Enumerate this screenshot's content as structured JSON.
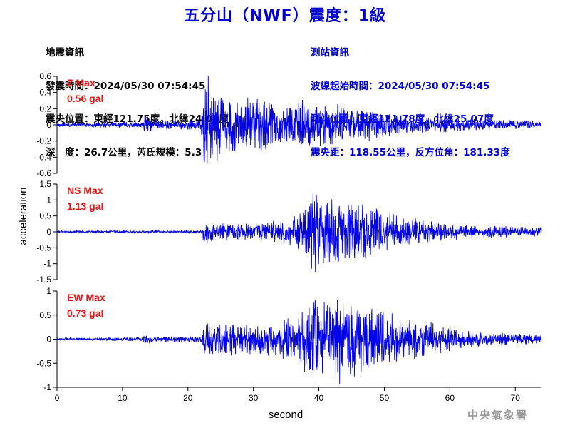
{
  "title": "五分山（NWF）震度：1級",
  "quake_info": {
    "header": "地震資訊",
    "time_label": "發震時間：",
    "time": "2024/05/30 07:54:45",
    "location_label": "震央位置：",
    "location": "東經121.75度，北緯24.00度",
    "depth_magnitude": "深　度：26.7公里，芮氏規模：5.3"
  },
  "station_info": {
    "header": "測站資訊",
    "wave_start_label": "波線起始時間：",
    "wave_start": "2024/05/30 07:54:45",
    "station_location": "測站位置：東經121.78度，北緯25.07度",
    "distance_azimuth": "震央距：118.55公里，反方位角：181.33度"
  },
  "credit": "中央氣象署",
  "colors": {
    "trace": "#0000ee",
    "title": "#0000cc",
    "max_label": "#ee1111"
  },
  "chart_data": [
    {
      "type": "line",
      "component": "Z",
      "max_label": "Z Max",
      "max_value": "0.56 gal",
      "ylim": [
        -0.6,
        0.6
      ],
      "yticks": [
        "0.6",
        "0.4",
        "0.2",
        "0",
        "-0.2",
        "-0.4",
        "-0.6"
      ],
      "ytick_values": [
        0.6,
        0.4,
        0.2,
        0,
        -0.2,
        -0.4,
        -0.6
      ],
      "x_range": [
        0,
        74
      ],
      "envelope": [
        [
          0,
          0.02
        ],
        [
          13,
          0.03
        ],
        [
          13.5,
          0.1
        ],
        [
          14.5,
          0.05
        ],
        [
          22,
          0.05
        ],
        [
          22.3,
          0.3
        ],
        [
          22.6,
          0.56
        ],
        [
          23.5,
          0.45
        ],
        [
          25,
          0.3
        ],
        [
          28,
          0.25
        ],
        [
          31,
          0.28
        ],
        [
          33,
          0.2
        ],
        [
          36,
          0.2
        ],
        [
          37,
          0.25
        ],
        [
          40,
          0.22
        ],
        [
          46,
          0.18
        ],
        [
          50,
          0.12
        ],
        [
          55,
          0.08
        ],
        [
          60,
          0.07
        ],
        [
          65,
          0.05
        ],
        [
          74,
          0.04
        ]
      ]
    },
    {
      "type": "line",
      "component": "NS",
      "max_label": "NS Max",
      "max_value": "1.13 gal",
      "ylim": [
        -1.5,
        1.5
      ],
      "yticks": [
        "1.5",
        "1",
        "0.5",
        "0",
        "-0.5",
        "-1",
        "-1.5"
      ],
      "ytick_values": [
        1.5,
        1,
        0.5,
        0,
        -0.5,
        -1,
        -1.5
      ],
      "x_range": [
        0,
        74
      ],
      "envelope": [
        [
          0,
          0.03
        ],
        [
          22,
          0.04
        ],
        [
          22.4,
          0.3
        ],
        [
          24,
          0.25
        ],
        [
          30,
          0.22
        ],
        [
          35,
          0.3
        ],
        [
          37,
          0.5
        ],
        [
          38.5,
          0.8
        ],
        [
          39.2,
          1.13
        ],
        [
          40.5,
          0.9
        ],
        [
          43,
          0.75
        ],
        [
          46,
          0.7
        ],
        [
          49,
          0.65
        ],
        [
          52,
          0.4
        ],
        [
          56,
          0.3
        ],
        [
          60,
          0.2
        ],
        [
          65,
          0.15
        ],
        [
          74,
          0.12
        ]
      ]
    },
    {
      "type": "line",
      "component": "EW",
      "max_label": "EW Max",
      "max_value": "0.73 gal",
      "ylim": [
        -1,
        1
      ],
      "yticks": [
        "1",
        "0.5",
        "0",
        "-0.5",
        "-1"
      ],
      "ytick_values": [
        1,
        0.5,
        0,
        -0.5,
        -1
      ],
      "x_range": [
        0,
        74
      ],
      "envelope": [
        [
          0,
          0.02
        ],
        [
          13,
          0.03
        ],
        [
          13.5,
          0.08
        ],
        [
          14.5,
          0.04
        ],
        [
          22,
          0.05
        ],
        [
          22.5,
          0.25
        ],
        [
          25,
          0.28
        ],
        [
          30,
          0.25
        ],
        [
          34,
          0.3
        ],
        [
          37,
          0.4
        ],
        [
          39,
          0.7
        ],
        [
          41,
          0.6
        ],
        [
          43,
          0.73
        ],
        [
          46,
          0.6
        ],
        [
          49,
          0.55
        ],
        [
          52,
          0.4
        ],
        [
          56,
          0.3
        ],
        [
          60,
          0.22
        ],
        [
          65,
          0.12
        ],
        [
          74,
          0.08
        ]
      ]
    }
  ],
  "x_axis": {
    "label": "second",
    "ticks": [
      "0",
      "10",
      "20",
      "30",
      "40",
      "50",
      "60",
      "70"
    ],
    "tick_values": [
      0,
      10,
      20,
      30,
      40,
      50,
      60,
      70
    ]
  },
  "y_axis": {
    "label": "acceleration"
  }
}
